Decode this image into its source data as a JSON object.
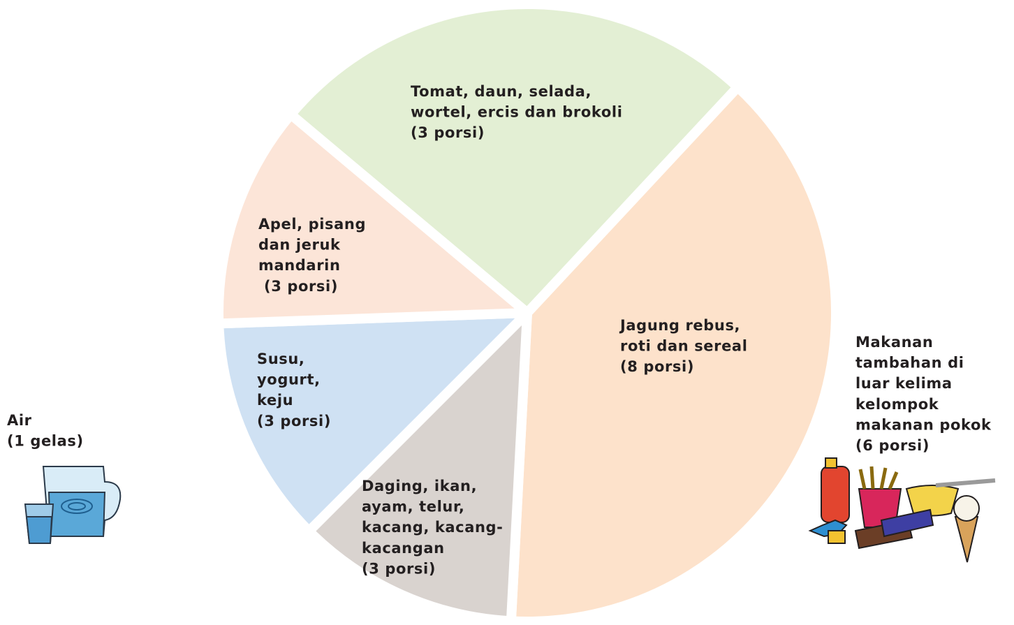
{
  "segments": [
    {
      "lines": [
        "Tomat, daun, selada,",
        "wortel, ercis dan brokoli",
        "(3 porsi)"
      ]
    },
    {
      "lines": [
        "Jagung rebus,",
        "roti dan sereal",
        "(8 porsi)"
      ]
    },
    {
      "lines": [
        "Daging, ikan,",
        "ayam, telur,",
        "kacang, kacang-",
        "kacangan",
        "(3 porsi)"
      ]
    },
    {
      "lines": [
        "Susu,",
        "yogurt,",
        "keju",
        "(3 porsi)"
      ]
    },
    {
      "lines": [
        "Apel, pisang",
        "dan jeruk",
        "mandarin",
        "(3 porsi)"
      ]
    }
  ],
  "outside": [
    {
      "lines": [
        "Air",
        "(1 gelas)"
      ]
    },
    {
      "lines": [
        "Makanan",
        "tambahan di",
        "luar kelima",
        "kelompok",
        "makanan pokok",
        "(6 porsi)"
      ]
    }
  ]
}
